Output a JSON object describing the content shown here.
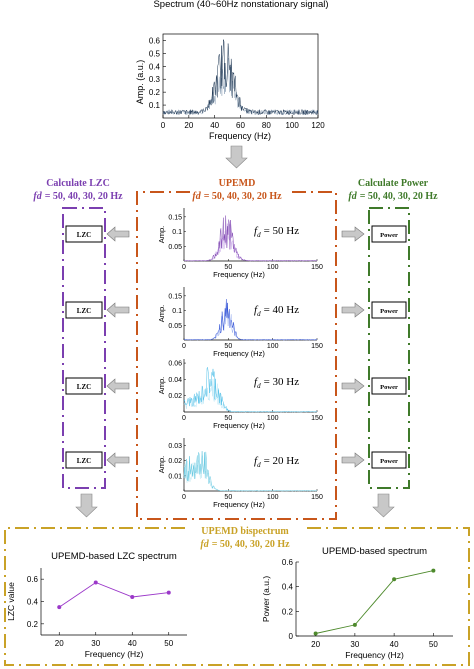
{
  "colors": {
    "purple": "#7b3fb0",
    "orange": "#c8561b",
    "green": "#3f7a2a",
    "gold": "#c9a227",
    "navy": "#1c3552",
    "blue": "#2e4fd6",
    "lightblue": "#52c0e8",
    "arrow": "#c8c8c8"
  },
  "top": {
    "title": "Spectrum (40~60Hz nonstationary signal)",
    "ylabel": "Amp. (a.u.)",
    "xlabel": "Frequency (Hz)",
    "yticks": [
      "0.1",
      "0.2",
      "0.3",
      "0.4",
      "0.5",
      "0.6"
    ],
    "xticks": [
      "0",
      "20",
      "40",
      "60",
      "80",
      "100",
      "120"
    ]
  },
  "left": {
    "title": "Calculate LZC",
    "fd_prefix": "fd",
    "fd_values": "= 50, 40, 30, 20 Hz",
    "box_label": "LZC"
  },
  "middle": {
    "title": "UPEMD",
    "fd_prefix": "fd",
    "fd_values": "= 50, 40, 30, 20 Hz",
    "ylabel": "Amp.",
    "xlabel": "Frequency (Hz)",
    "xticks": [
      "0",
      "50",
      "100",
      "150"
    ],
    "panels": [
      {
        "fd_text": "= 50 Hz",
        "yticks": [
          "0.05",
          "0.1",
          "0.15"
        ]
      },
      {
        "fd_text": "= 40 Hz",
        "yticks": [
          "0.05",
          "0.1",
          "0.15"
        ]
      },
      {
        "fd_text": "= 30 Hz",
        "yticks": [
          "0.02",
          "0.04",
          "0.06"
        ]
      },
      {
        "fd_text": "= 20 Hz",
        "yticks": [
          "0.01",
          "0.02",
          "0.03"
        ]
      }
    ]
  },
  "right": {
    "title": "Calculate Power",
    "fd_prefix": "fd",
    "fd_values": "= 50, 40, 30, 20 Hz",
    "box_label": "Power"
  },
  "bottom": {
    "title": "UPEMD bispectrum",
    "fd_prefix": "fd",
    "fd_values": "= 50, 40, 30, 20 Hz"
  },
  "chart_data": [
    {
      "type": "line",
      "title": "UPEMD-based LZC spectrum",
      "xlabel": "Frequency (Hz)",
      "ylabel": "LZC value",
      "x": [
        20,
        30,
        40,
        50
      ],
      "values": [
        0.35,
        0.57,
        0.44,
        0.48
      ],
      "xticks": [
        "20",
        "30",
        "40",
        "50"
      ],
      "yticks": [
        "0.2",
        "0.4",
        "0.6"
      ],
      "xlim": [
        15,
        55
      ],
      "ylim": [
        0.1,
        0.7
      ],
      "color": "#9b38c9",
      "grid": false
    },
    {
      "type": "line",
      "title": "UPEMD-based spectrum",
      "xlabel": "Frequency (Hz)",
      "ylabel": "Power (a.u.)",
      "x": [
        20,
        30,
        40,
        50
      ],
      "values": [
        0.02,
        0.09,
        0.46,
        0.53
      ],
      "xticks": [
        "20",
        "30",
        "40",
        "50"
      ],
      "yticks": [
        "0",
        "0.2",
        "0.4",
        "0.6"
      ],
      "xlim": [
        15,
        55
      ],
      "ylim": [
        0,
        0.6
      ],
      "color": "#4e8a2c",
      "grid": false
    }
  ]
}
